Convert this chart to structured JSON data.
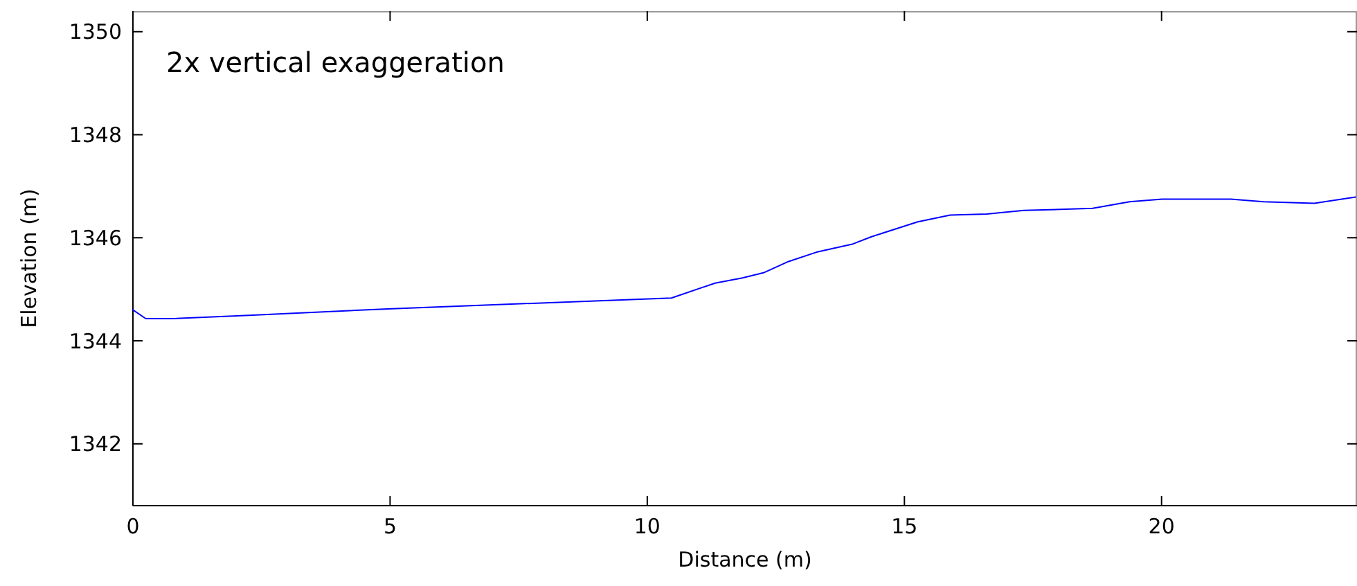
{
  "chart_data": {
    "type": "line",
    "xlabel": "Distance (m)",
    "ylabel": "Elevation (m)",
    "annotations": [
      "2x vertical exaggeration"
    ],
    "xlim": [
      0,
      23.8
    ],
    "xticks": [
      0,
      5,
      10,
      15,
      20
    ],
    "ylim": [
      1340.8,
      1350.4
    ],
    "yticks": [
      1342,
      1344,
      1346,
      1348,
      1350
    ],
    "grid": false,
    "marker": "none",
    "line_style": "solid",
    "x": [
      0,
      0.25,
      0.74,
      2.18,
      4.95,
      10.47,
      11.32,
      11.85,
      12.26,
      12.75,
      13.29,
      14.0,
      14.36,
      15.26,
      15.89,
      16.6,
      17.32,
      18.66,
      19.38,
      20.01,
      21.35,
      21.98,
      22.97,
      23.77
    ],
    "series": [
      {
        "color": "#0000ff",
        "values": [
          1344.6,
          1344.43,
          1344.43,
          1344.49,
          1344.62,
          1344.83,
          1345.12,
          1345.22,
          1345.32,
          1345.54,
          1345.72,
          1345.88,
          1346.02,
          1346.31,
          1346.44,
          1346.46,
          1346.53,
          1346.57,
          1346.7,
          1346.75,
          1346.75,
          1346.7,
          1346.67,
          1346.79
        ]
      }
    ]
  }
}
